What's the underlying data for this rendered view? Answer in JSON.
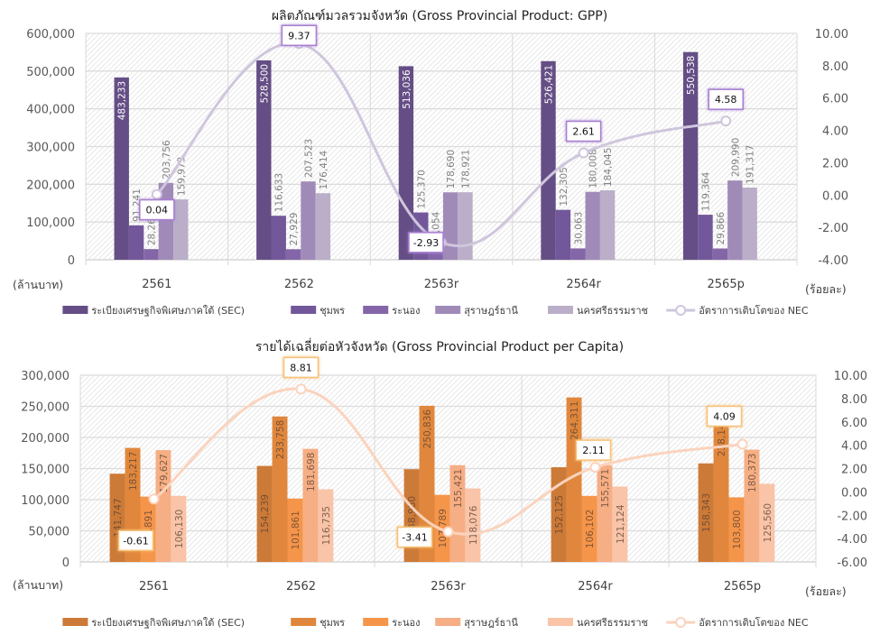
{
  "chart_data": [
    {
      "type": "bar",
      "title": "ผลิตภัณฑ์มวลรวมจังหวัด (Gross Provincial Product: GPP)",
      "ylabel": "(ล้านบาท)",
      "y2label": "(ร้อยละ)",
      "categories": [
        "2561",
        "2562",
        "2563r",
        "2564r",
        "2565p"
      ],
      "ylim": [
        0,
        600000
      ],
      "yticks": [
        "0",
        "100,000",
        "200,000",
        "300,000",
        "400,000",
        "500,000",
        "600,000"
      ],
      "y2lim": [
        -4,
        10
      ],
      "y2ticks": [
        "-4.00",
        "-2.00",
        "0.00",
        "2.00",
        "4.00",
        "6.00",
        "8.00",
        "10.00"
      ],
      "grid": true,
      "legend_position": "bottom",
      "series": [
        {
          "name": "ระเบียงเศรษฐกิจพิเศษภาคใต้ (SEC)",
          "color": "#654e85",
          "values": [
            483233,
            528500,
            513036,
            526421,
            550538
          ],
          "labels": [
            "483,233",
            "528,500",
            "513,036",
            "526,421",
            "550,538"
          ]
        },
        {
          "name": "ชุมพร",
          "color": "#72589a",
          "values": [
            91241,
            116633,
            125370,
            132305,
            119364
          ],
          "labels": [
            "91,241",
            "116,633",
            "125,370",
            "132,305",
            "119,364"
          ]
        },
        {
          "name": "ระนอง",
          "color": "#8466a8",
          "values": [
            28263,
            27929,
            30054,
            30063,
            29866
          ],
          "labels": [
            "28,263",
            "27,929",
            "30,054",
            "30,063",
            "29,866"
          ]
        },
        {
          "name": "สุราษฎร์ธานี",
          "color": "#a08bb8",
          "values": [
            203756,
            207523,
            178690,
            180008,
            209990
          ],
          "labels": [
            "203,756",
            "207,523",
            "178,690",
            "180,008",
            "209,990"
          ]
        },
        {
          "name": "นครศรีธรรมราช",
          "color": "#bbaec9",
          "values": [
            159973,
            176414,
            178921,
            184045,
            191317
          ],
          "labels": [
            "159,973",
            "176,414",
            "178,921",
            "184,045",
            "191,317"
          ]
        }
      ],
      "line": {
        "name": "อัตราการเติบโตของ NEC",
        "color": "#cfc6dd",
        "accent": "#a77fd0",
        "axis": "secondary",
        "values": [
          0.04,
          9.37,
          -2.93,
          2.61,
          4.58
        ],
        "labels": [
          "0.04",
          "9.37",
          "-2.93",
          "2.61",
          "4.58"
        ]
      }
    },
    {
      "type": "bar",
      "title": "รายได้เฉลี่ยต่อหัวจังหวัด (Gross Provincial Product per Capita)",
      "ylabel": "(ล้านบาท)",
      "y2label": "(ร้อยละ)",
      "categories": [
        "2561",
        "2562",
        "2563r",
        "2564r",
        "2565p"
      ],
      "ylim": [
        0,
        300000
      ],
      "yticks": [
        "0",
        "50,000",
        "100,000",
        "150,000",
        "200,000",
        "250,000",
        "300,000"
      ],
      "y2lim": [
        -6,
        10
      ],
      "y2ticks": [
        "-6.00",
        "-4.00",
        "-2.00",
        "0.00",
        "2.00",
        "4.00",
        "6.00",
        "8.00",
        "10.00"
      ],
      "grid": true,
      "legend_position": "bottom",
      "series": [
        {
          "name": "ระเบียงเศรษฐกิจพิเศษภาคใต้ (SEC)",
          "color": "#cc7a38",
          "values": [
            141747,
            154239,
            148980,
            152125,
            158343
          ],
          "labels": [
            "141,747",
            "154,239",
            "148,980",
            "152,125",
            "158,343"
          ]
        },
        {
          "name": "ชุมพร",
          "color": "#e0873d",
          "values": [
            183217,
            233758,
            250836,
            264311,
            238147
          ],
          "labels": [
            "183,217",
            "233,758",
            "250,836",
            "264,311",
            "238,147"
          ]
        },
        {
          "name": "ระนอง",
          "color": "#f5954a",
          "values": [
            104891,
            101861,
            107789,
            106102,
            103800
          ],
          "labels": [
            "104,891",
            "101,861",
            "107,789",
            "106,102",
            "103,800"
          ]
        },
        {
          "name": "สุราษฎร์ธานี",
          "color": "#f6ae84",
          "values": [
            179627,
            181698,
            155421,
            155571,
            180373
          ],
          "labels": [
            "179,627",
            "181,698",
            "155,421",
            "155,571",
            "180,373"
          ]
        },
        {
          "name": "นครศรีธรรมราช",
          "color": "#f9c4a8",
          "values": [
            106130,
            116735,
            118076,
            121124,
            125560
          ],
          "labels": [
            "106,130",
            "116,735",
            "118,076",
            "121,124",
            "125,560"
          ]
        }
      ],
      "line": {
        "name": "อัตราการเติบโตของ NEC",
        "color": "#fbd3bd",
        "accent": "#f7c27a",
        "axis": "secondary",
        "values": [
          -0.61,
          8.81,
          -3.41,
          2.11,
          4.09
        ],
        "labels": [
          "-0.61",
          "8.81",
          "-3.41",
          "2.11",
          "4.09"
        ]
      }
    }
  ]
}
